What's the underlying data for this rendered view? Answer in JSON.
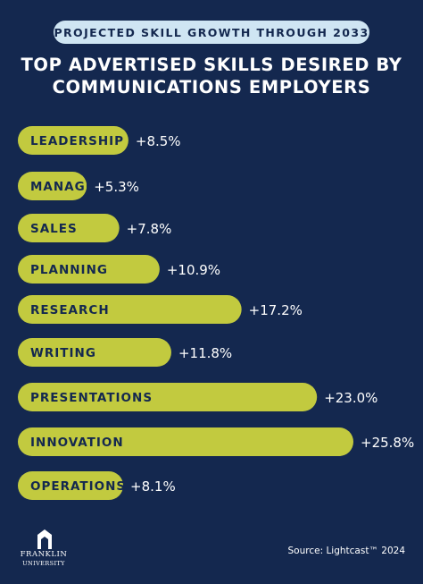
{
  "header": {
    "subtitle": "PROJECTED SKILL GROWTH THROUGH 2033",
    "title_line1": "TOP ADVERTISED SKILLS DESIRED BY",
    "title_line2": "COMMUNICATIONS EMPLOYERS"
  },
  "colors": {
    "background": "#14284f",
    "bar": "#c2ca3f",
    "bar_label": "#14284f",
    "value_label": "#ffffff",
    "subtitle_pill": "#cfe5f3"
  },
  "chart_data": {
    "type": "bar",
    "orientation": "horizontal",
    "categories": [
      "LEADERSHIP",
      "MANAGEMENT",
      "SALES",
      "PLANNING",
      "RESEARCH",
      "WRITING",
      "PRESENTATIONS",
      "INNOVATION",
      "OPERATIONS"
    ],
    "values": [
      8.5,
      5.3,
      7.8,
      10.9,
      17.2,
      11.8,
      23.0,
      25.8,
      8.1
    ],
    "value_labels": [
      "+8.5%",
      "+5.3%",
      "+7.8%",
      "+10.9%",
      "+17.2%",
      "+11.8%",
      "+23.0%",
      "+25.8%",
      "+8.1%"
    ],
    "title": "TOP ADVERTISED SKILLS DESIRED BY COMMUNICATIONS EMPLOYERS",
    "subtitle": "PROJECTED SKILL GROWTH THROUGH 2033",
    "xlabel": "",
    "ylabel": "",
    "grid": false,
    "legend": "none"
  },
  "footer": {
    "logo_line1": "FRANKLIN",
    "logo_line2": "UNIVERSITY",
    "source": "Source: Lightcast™ 2024"
  }
}
